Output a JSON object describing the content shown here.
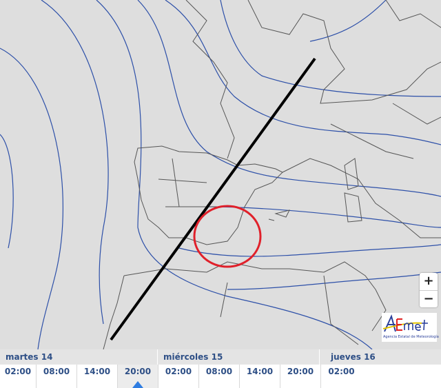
{
  "map": {
    "background": "#dedede",
    "isobar_color": "#2c4fa8",
    "coast_color": "#444444",
    "annotation_line_color": "#000000",
    "annotation_circle_color": "#e0202a"
  },
  "zoom": {
    "in_label": "+",
    "out_label": "−"
  },
  "logo": {
    "name": "AEMet",
    "subtitle": "Agencia Estatal de Meteorología"
  },
  "timeline": {
    "days": [
      {
        "label": "martes 14"
      },
      {
        "label": "miércoles 15"
      },
      {
        "label": "jueves 16"
      }
    ],
    "times": [
      "02:00",
      "08:00",
      "14:00",
      "20:00",
      "02:00",
      "08:00",
      "14:00",
      "20:00",
      "02:00"
    ],
    "selected_index": 3,
    "accent": "#2f7de1"
  }
}
